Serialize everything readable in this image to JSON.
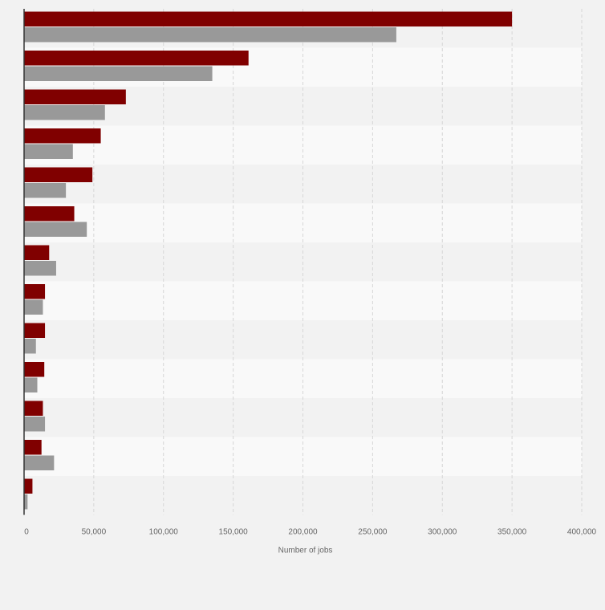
{
  "chart_data": {
    "type": "bar",
    "orientation": "horizontal",
    "categories": [
      "",
      "",
      "",
      "",
      "",
      "",
      "",
      "",
      "",
      "",
      "",
      "",
      ""
    ],
    "series": [
      {
        "values": [
          350000,
          161000,
          73000,
          55000,
          49000,
          36000,
          18000,
          15000,
          15000,
          14500,
          13500,
          12500,
          6000
        ]
      },
      {
        "values": [
          267000,
          135000,
          58000,
          35000,
          30000,
          45000,
          23000,
          13500,
          8500,
          9500,
          15000,
          21500,
          2500
        ]
      }
    ],
    "colors": [
      "#800000",
      "#999999"
    ],
    "xlabel": "Number of jobs",
    "ylabel": "",
    "xlim": [
      0,
      400000
    ],
    "xticks": [
      0,
      50000,
      100000,
      150000,
      200000,
      250000,
      300000,
      350000,
      400000
    ],
    "xtick_labels": [
      "0",
      "50,000",
      "100,000",
      "150,000",
      "200,000",
      "250,000",
      "300,000",
      "350,000",
      "400,000"
    ],
    "grid": "vertical dashed",
    "band_colors": [
      "#f2f2f2",
      "#f9f9f9"
    ]
  }
}
